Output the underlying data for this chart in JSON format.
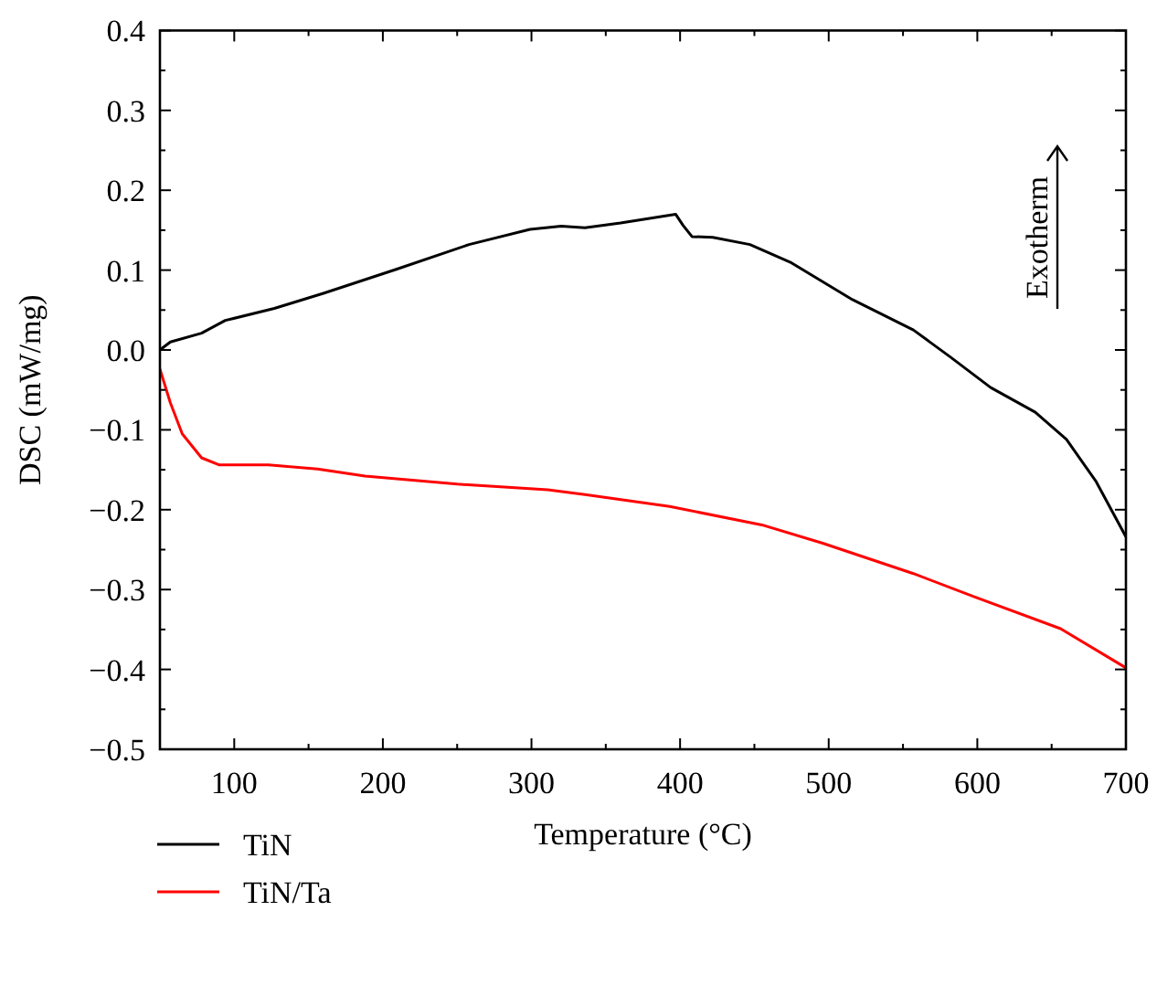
{
  "chart_data": {
    "type": "line",
    "xlabel": "Temperature (°C)",
    "ylabel": "DSC (mW/mg)",
    "xlim": [
      50,
      700
    ],
    "ylim": [
      -0.5,
      0.4
    ],
    "xticks": [
      100,
      {
        "value": 150,
        "label": null
      },
      200,
      {
        "value": 250,
        "label": null
      },
      300,
      {
        "value": 350,
        "label": null
      },
      400,
      {
        "value": 450,
        "label": null
      },
      500,
      {
        "value": 550,
        "label": null
      },
      600,
      {
        "value": 650,
        "label": null
      },
      700
    ],
    "yticks": [
      {
        "value": -0.5,
        "label": "−0.5"
      },
      {
        "value": -0.45,
        "label": null
      },
      {
        "value": -0.4,
        "label": "−0.4"
      },
      {
        "value": -0.35,
        "label": null
      },
      {
        "value": -0.3,
        "label": "−0.3"
      },
      {
        "value": -0.25,
        "label": null
      },
      {
        "value": -0.2,
        "label": "−0.2"
      },
      {
        "value": -0.15,
        "label": null
      },
      {
        "value": -0.1,
        "label": "−0.1"
      },
      {
        "value": -0.05,
        "label": null
      },
      {
        "value": 0,
        "label": "0.0"
      },
      {
        "value": 0.05,
        "label": null
      },
      0.1,
      {
        "value": 0.15,
        "label": null
      },
      0.2,
      {
        "value": 0.25,
        "label": null
      },
      0.3,
      {
        "value": 0.35,
        "label": null
      },
      0.4
    ],
    "grid": false,
    "legend": "bottom",
    "annotations": [
      "Exotherm"
    ],
    "line_style": "solid",
    "series": [
      {
        "name": "TiN",
        "color": "#000000",
        "x": [
          50,
          57,
          78,
          94,
          127,
          160,
          209,
          258,
          299,
          320,
          336,
          360,
          397,
          402,
          408,
          422,
          447,
          475,
          516,
          557,
          582,
          609,
          639,
          660,
          680,
          700
        ],
        "values": [
          0.0,
          0.01,
          0.021,
          0.037,
          0.052,
          0.071,
          0.101,
          0.132,
          0.151,
          0.155,
          0.153,
          0.159,
          0.17,
          0.156,
          0.142,
          0.141,
          0.132,
          0.109,
          0.063,
          0.025,
          -0.009,
          -0.047,
          -0.078,
          -0.112,
          -0.165,
          -0.234
        ]
      },
      {
        "name": "TiN/Ta",
        "color": "#ff0000",
        "x": [
          50,
          57,
          65,
          78,
          90,
          123,
          156,
          188,
          250,
          311,
          336,
          393,
          455,
          496,
          557,
          598,
          656,
          700
        ],
        "values": [
          -0.024,
          -0.066,
          -0.105,
          -0.135,
          -0.144,
          -0.144,
          -0.149,
          -0.158,
          -0.168,
          -0.175,
          -0.181,
          -0.196,
          -0.219,
          -0.242,
          -0.28,
          -0.309,
          -0.349,
          -0.398
        ]
      }
    ]
  }
}
